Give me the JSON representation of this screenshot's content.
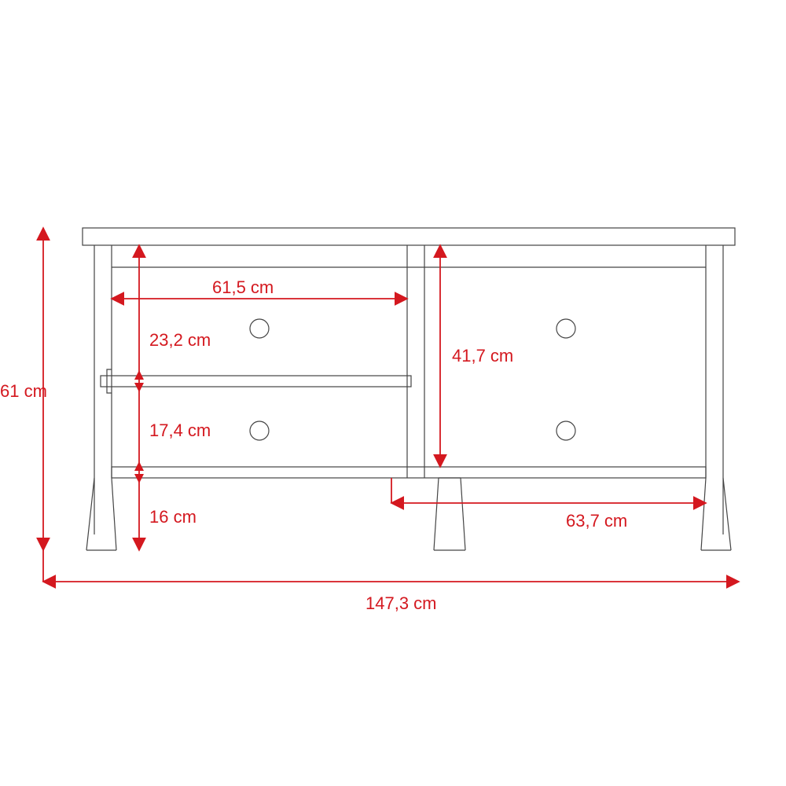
{
  "diagram": {
    "type": "technical-drawing",
    "background_color": "#ffffff",
    "outline_color": "#444444",
    "dimension_color": "#d4181f",
    "font_size": 22,
    "stroke_width_furniture": 1.2,
    "stroke_width_dimension": 1.8,
    "knob_radius": 12,
    "arrow_size": 8,
    "dimensions": {
      "total_height": "61 cm",
      "total_width": "147,3 cm",
      "shelf_width": "61,5 cm",
      "upper_shelf_height": "23,2 cm",
      "lower_shelf_height": "17,4 cm",
      "leg_clearance": "16 cm",
      "right_panel_height": "41,7 cm",
      "right_section_width": "63,7 cm"
    }
  }
}
